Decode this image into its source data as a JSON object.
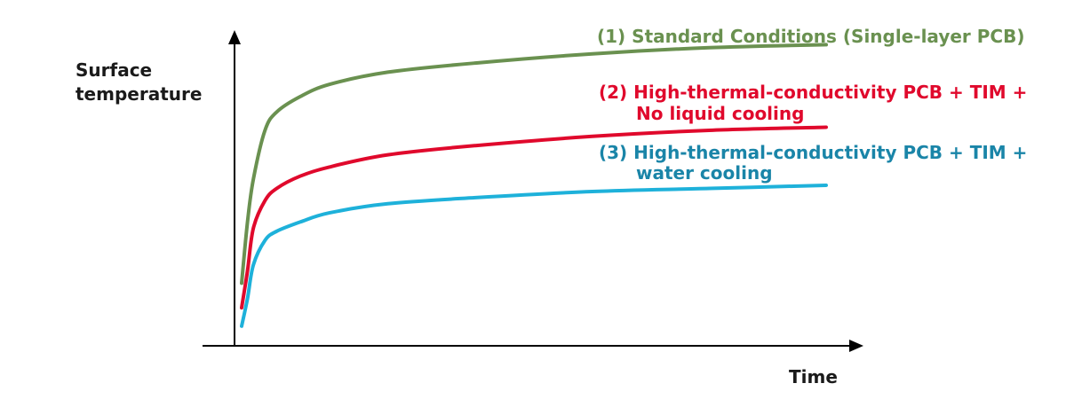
{
  "chart_data": {
    "type": "line",
    "title": "",
    "ylabel_lines": [
      "Surface",
      "temperature"
    ],
    "xlabel": "Time",
    "axis_ticks": false,
    "grid": false,
    "legend": "inline-right",
    "xlim": [
      0,
      100
    ],
    "ylim": [
      0,
      100
    ],
    "series": [
      {
        "label_lines": [
          "(1) Standard Conditions (Single-layer PCB)"
        ],
        "color": "#6a9150",
        "x": [
          0,
          1,
          2,
          4,
          6,
          10,
          15,
          25,
          40,
          60,
          80,
          100
        ],
        "y": [
          19,
          39,
          53,
          69,
          75,
          80,
          84,
          88,
          91,
          94,
          96,
          97
        ]
      },
      {
        "label_lines": [
          "(2) High-thermal-conductivity PCB + TIM +",
          "No liquid cooling"
        ],
        "color": "#e0092c",
        "x": [
          0,
          1,
          2,
          4,
          6,
          10,
          15,
          25,
          40,
          60,
          80,
          100
        ],
        "y": [
          11,
          23,
          37,
          46,
          50,
          54,
          57,
          61,
          64,
          67,
          69,
          70
        ]
      },
      {
        "label_lines": [
          "(3) High-thermal-conductivity PCB + TIM +",
          "water cooling"
        ],
        "color": "#1eb1da",
        "x": [
          0,
          1,
          2,
          4,
          6,
          10,
          15,
          25,
          40,
          60,
          80,
          100
        ],
        "y": [
          5,
          14,
          25,
          33,
          36,
          39,
          42,
          45,
          47,
          49,
          50,
          51
        ]
      }
    ]
  },
  "label_colors": [
    "#6a9150",
    "#e0092c",
    "#1a85a8"
  ]
}
